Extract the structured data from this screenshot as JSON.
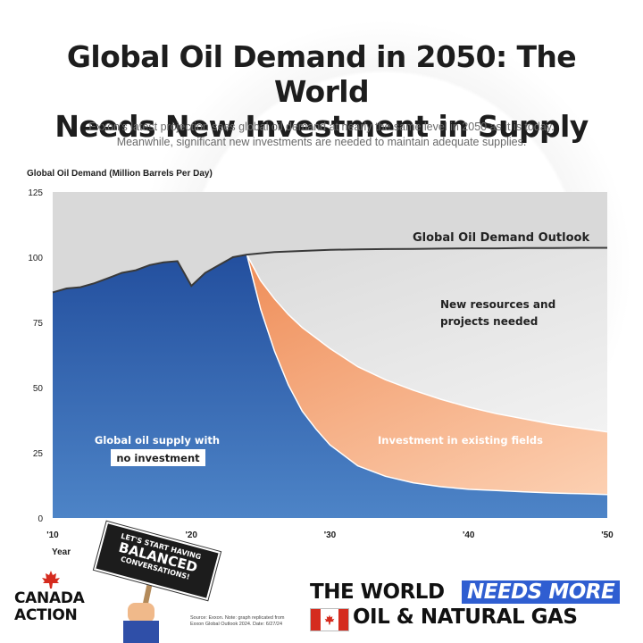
{
  "header": {
    "title_line1": "Global Oil Demand in 2050: The World",
    "title_line2": "Needs New Investment in Supply",
    "subtitle_line1": "Exxon's latest projection sees global oil demand at nearly the same level in 2050 as it is today.",
    "subtitle_line2": "Meanwhile, significant new investments are needed to maintain adequate supplies."
  },
  "chart_data": {
    "type": "area",
    "ylabel": "Global Oil Demand (Million Barrels Per Day)",
    "xlabel": "Year",
    "ylim": [
      0,
      125
    ],
    "xlim": [
      2010,
      2050
    ],
    "yticks": [
      0,
      25,
      50,
      75,
      100,
      125
    ],
    "xticks": [
      {
        "value": 2010,
        "label": "'10"
      },
      {
        "value": 2020,
        "label": "'20"
      },
      {
        "value": 2030,
        "label": "'30"
      },
      {
        "value": 2040,
        "label": "'40"
      },
      {
        "value": 2050,
        "label": "'50"
      }
    ],
    "x": [
      2010,
      2011,
      2012,
      2013,
      2014,
      2015,
      2016,
      2017,
      2018,
      2019,
      2020,
      2021,
      2022,
      2023,
      2024,
      2025,
      2026,
      2027,
      2028,
      2029,
      2030,
      2032,
      2034,
      2036,
      2038,
      2040,
      2042,
      2044,
      2046,
      2048,
      2050
    ],
    "series": [
      {
        "name": "Global Oil Demand Outlook",
        "color": "#3a3a3a",
        "values": [
          86.5,
          88,
          88.5,
          90,
          92,
          94,
          95,
          97,
          98,
          98.5,
          89,
          94,
          97,
          100,
          101,
          101.5,
          102,
          102.2,
          102.4,
          102.6,
          102.8,
          103,
          103.1,
          103.2,
          103.3,
          103.4,
          103.4,
          103.5,
          103.5,
          103.6,
          103.6
        ]
      },
      {
        "name": "Global oil supply with no investment",
        "color": "#2d63b3",
        "values": [
          86.5,
          88,
          88.5,
          90,
          92,
          94,
          95,
          97,
          98,
          98.5,
          89,
          94,
          97,
          100,
          101,
          80,
          64,
          51,
          41,
          34,
          28,
          20,
          16,
          13.5,
          12,
          11,
          10.5,
          10,
          9.6,
          9.3,
          9
        ]
      },
      {
        "name": "Investment in existing fields",
        "color": "#f08a55",
        "values": [
          86.5,
          88,
          88.5,
          90,
          92,
          94,
          95,
          97,
          98,
          98.5,
          89,
          94,
          97,
          100,
          101,
          91,
          84,
          78,
          73,
          69,
          65,
          58,
          53,
          49,
          45.5,
          42.5,
          40,
          38,
          36,
          34.5,
          33
        ]
      }
    ],
    "annotations": {
      "demand_outlook": "Global Oil Demand Outlook",
      "new_resources_line1": "New resources and",
      "new_resources_line2": "projects needed",
      "existing_fields": "Investment in existing fields",
      "no_investment_line1": "Global oil supply with",
      "no_investment_line2": "no investment"
    },
    "colors": {
      "gap_fill": "#e6e6e6",
      "plot_bg": "#d9d9d9",
      "blue_dark": "#2a5aa8",
      "orange": "#f08a55",
      "orange_light": "#fbc7a4"
    }
  },
  "footer": {
    "logo_line1": "CANADA",
    "logo_line2": "ACTION",
    "sign_line1": "LET'S START HAVING",
    "sign_line2": "BALANCED",
    "sign_line3": "CONVERSATIONS!",
    "source_line1": "Source: Exxon. Note: graph replicated from",
    "source_line2": "Exxon Global Outlook 2024. Date: 6/27/24",
    "tagline_part1": "THE WORLD",
    "tagline_highlight": "NEEDS MORE",
    "tagline_part2": "OIL & NATURAL GAS",
    "accent_color": "#2f5ed1"
  }
}
